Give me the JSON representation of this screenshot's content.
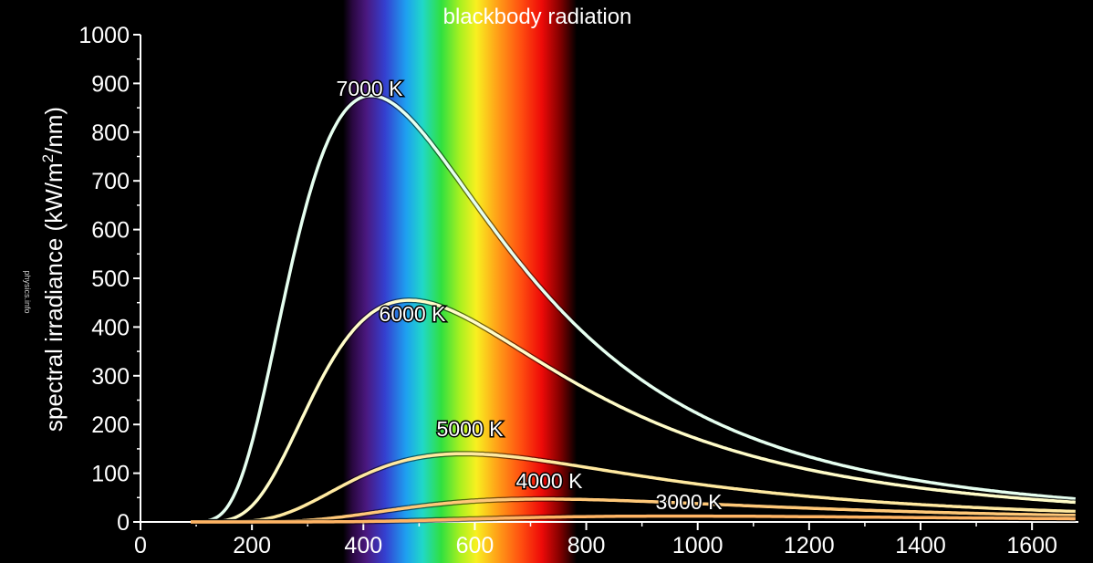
{
  "chart_data": {
    "type": "line",
    "title": "blackbody radiation",
    "ylabel_main": "spectral irradiance (kW/m",
    "ylabel_sup": "2",
    "ylabel_end": "/nm)",
    "xlabel": "",
    "xlim": [
      0,
      1680
    ],
    "ylim": [
      0,
      1000
    ],
    "xticks": [
      0,
      200,
      400,
      600,
      800,
      1000,
      1200,
      1400,
      1600
    ],
    "yticks": [
      0,
      100,
      200,
      300,
      400,
      500,
      600,
      700,
      800,
      900,
      1000
    ],
    "grid": false,
    "visible_spectrum_nm": [
      380,
      760
    ],
    "series": [
      {
        "name": "7000 K",
        "temperature": 7000,
        "color": "#e6fff0",
        "peak": [
          410,
          875
        ]
      },
      {
        "name": "6000 K",
        "temperature": 6000,
        "color": "#fffcc8",
        "peak": [
          480,
          455
        ]
      },
      {
        "name": "5000 K",
        "temperature": 5000,
        "color": "#ffe9a0",
        "peak": [
          580,
          140
        ]
      },
      {
        "name": "4000 K",
        "temperature": 4000,
        "color": "#ffc878",
        "peak": [
          725,
          47
        ]
      },
      {
        "name": "3000 K",
        "temperature": 3000,
        "color": "#ffb464",
        "peak": [
          965,
          12
        ]
      }
    ]
  },
  "watermark": "physics.info"
}
